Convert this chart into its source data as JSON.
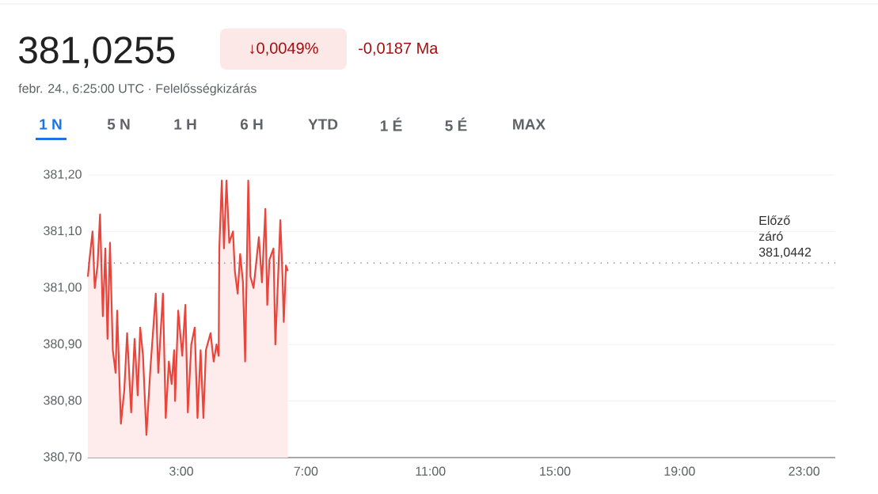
{
  "chart_data": {
    "type": "area",
    "title": "381,0255",
    "subtitle": "febr. 24., 6:25:00 UTC · Felelősségkizárás",
    "annotations": [
      "↓0,0049%",
      "-0,0187 Ma",
      "1 N",
      "5 N",
      "1 H",
      "6 H",
      "YTD",
      "1 É",
      "5 É",
      "MAX"
    ],
    "x": [
      0,
      0.05,
      0.15,
      0.22,
      0.31,
      0.39,
      0.48,
      0.56,
      0.63,
      0.71,
      0.8,
      0.89,
      0.94,
      1.06,
      1.17,
      1.26,
      1.39,
      1.5,
      1.6,
      1.68,
      1.77,
      1.88,
      2.01,
      2.18,
      2.26,
      2.41,
      2.5,
      2.6,
      2.69,
      2.77,
      2.8,
      2.9,
      3.03,
      3.13,
      3.21,
      3.32,
      3.43,
      3.52,
      3.62,
      3.71,
      3.79,
      3.94,
      4.04,
      4.13,
      4.2,
      4.22,
      4.3,
      4.37,
      4.45,
      4.54,
      4.66,
      4.72,
      4.81,
      4.89,
      4.98,
      5.05,
      5.15,
      5.22,
      5.32,
      5.49,
      5.59,
      5.7,
      5.76,
      5.83,
      5.96,
      6.02,
      6.13,
      6.18,
      6.25,
      6.29,
      6.36,
      6.42
    ],
    "series": [
      {
        "color": "#e8453c",
        "values": [
          381.02,
          381.05,
          381.1,
          381.0,
          381.04,
          381.13,
          380.95,
          381.07,
          380.91,
          381.08,
          380.89,
          380.85,
          380.96,
          380.76,
          380.82,
          380.92,
          380.78,
          380.91,
          380.81,
          380.93,
          380.88,
          380.74,
          380.86,
          380.99,
          380.85,
          380.99,
          380.77,
          380.87,
          380.83,
          380.89,
          380.8,
          380.96,
          380.88,
          380.97,
          380.78,
          380.9,
          380.93,
          380.77,
          380.89,
          380.77,
          380.89,
          380.92,
          380.87,
          380.9,
          380.88,
          381.07,
          381.19,
          381.07,
          381.19,
          381.08,
          381.1,
          381.03,
          380.99,
          381.06,
          381.01,
          380.87,
          381.19,
          381.02,
          381.0,
          381.09,
          381.01,
          381.14,
          380.97,
          381.05,
          381.07,
          380.9,
          381.05,
          381.12,
          381.02,
          380.94,
          381.04,
          381.03
        ]
      }
    ],
    "xlim": [
      0,
      24
    ],
    "xticks": [
      {
        "value": 3,
        "label": "3:00"
      },
      {
        "value": 7,
        "label": "7:00"
      },
      {
        "value": 11,
        "label": "11:00"
      },
      {
        "value": 15,
        "label": "15:00"
      },
      {
        "value": 19,
        "label": "19:00"
      },
      {
        "value": 23,
        "label": "23:00"
      }
    ],
    "ylim": [
      380.7,
      381.2
    ],
    "yticks": [
      {
        "value": 380.7,
        "label": "380,70"
      },
      {
        "value": 380.8,
        "label": "380,80"
      },
      {
        "value": 380.9,
        "label": "380,90"
      },
      {
        "value": 381.0,
        "label": "381,00"
      },
      {
        "value": 381.1,
        "label": "381,10"
      },
      {
        "value": 381.2,
        "label": "381,20"
      }
    ],
    "ref_lines": [
      {
        "axis": "y",
        "value": 381.0442,
        "label": "Előző záró 381,0442",
        "line_style": "dotted",
        "color": "#80868b"
      }
    ],
    "grid": "y"
  }
}
